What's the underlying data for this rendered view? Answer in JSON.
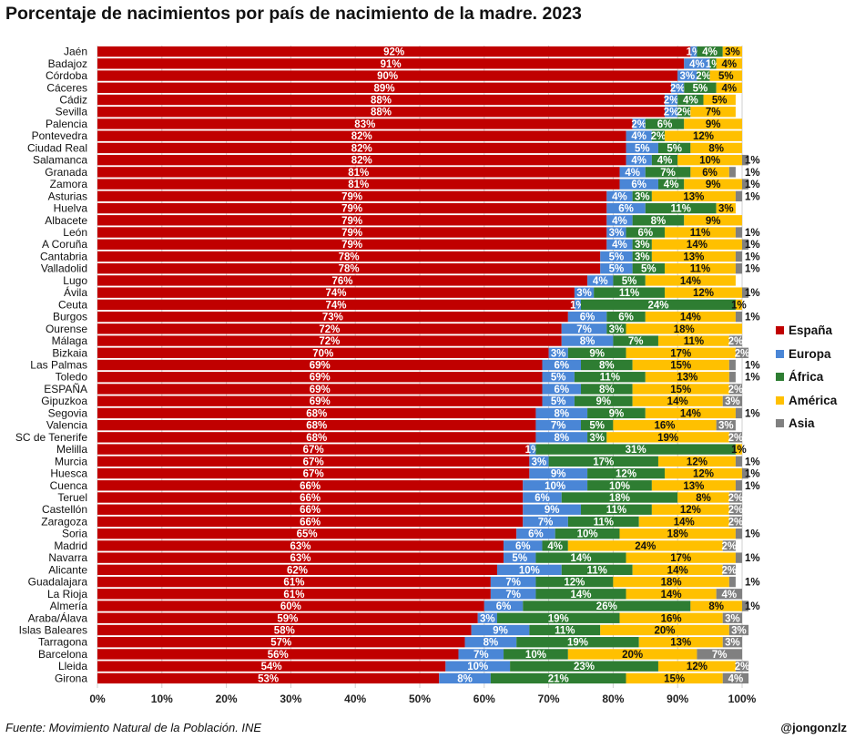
{
  "header": {
    "title": "Porcentaje de nacimientos por país de nacimiento de la madre. 2023"
  },
  "footer": {
    "source": "Fuente: Movimiento Natural de la Población. INE",
    "credit": "@jongonzlz"
  },
  "legend": {
    "placement": "right"
  },
  "chart_data": {
    "type": "bar",
    "orientation": "horizontal",
    "stacked": true,
    "title": "Porcentaje de nacimientos por país de nacimiento de la madre. 2023",
    "xlim": [
      0,
      100
    ],
    "x_ticks": [
      "0%",
      "10%",
      "20%",
      "30%",
      "40%",
      "50%",
      "60%",
      "70%",
      "80%",
      "90%",
      "100%"
    ],
    "grid": true,
    "categories": [
      "Jaén",
      "Badajoz",
      "Córdoba",
      "Cáceres",
      "Cádiz",
      "Sevilla",
      "Palencia",
      "Pontevedra",
      "Ciudad Real",
      "Salamanca",
      "Granada",
      "Zamora",
      "Asturias",
      "Huelva",
      "Albacete",
      "León",
      "A Coruña",
      "Cantabria",
      "Valladolid",
      "Lugo",
      "Ávila",
      "Ceuta",
      "Burgos",
      "Ourense",
      "Málaga",
      "Bizkaia",
      "Las Palmas",
      "Toledo",
      "ESPAÑA",
      "Gipuzkoa",
      "Segovia",
      "Valencia",
      "SC de Tenerife",
      "Melilla",
      "Murcia",
      "Huesca",
      "Cuenca",
      "Teruel",
      "Castellón",
      "Zaragoza",
      "Soria",
      "Madrid",
      "Navarra",
      "Alicante",
      "Guadalajara",
      "La Rioja",
      "Almería",
      "Araba/Álava",
      "Islas Baleares",
      "Tarragona",
      "Barcelona",
      "Lleida",
      "Girona"
    ],
    "series": [
      {
        "name": "España",
        "color": "#c00000",
        "values": [
          92,
          91,
          90,
          89,
          88,
          88,
          83,
          82,
          82,
          82,
          81,
          81,
          79,
          79,
          79,
          79,
          79,
          78,
          78,
          76,
          74,
          74,
          73,
          72,
          72,
          70,
          69,
          69,
          69,
          69,
          68,
          68,
          68,
          67,
          67,
          67,
          66,
          66,
          66,
          66,
          65,
          63,
          63,
          62,
          61,
          61,
          60,
          59,
          58,
          57,
          56,
          54,
          53
        ]
      },
      {
        "name": "Europa",
        "color": "#4a86d6",
        "values": [
          1,
          4,
          3,
          2,
          2,
          2,
          2,
          4,
          5,
          4,
          4,
          6,
          4,
          6,
          4,
          3,
          4,
          5,
          5,
          4,
          3,
          1,
          6,
          7,
          8,
          3,
          6,
          5,
          6,
          5,
          8,
          7,
          8,
          1,
          3,
          9,
          10,
          6,
          9,
          7,
          6,
          6,
          5,
          10,
          7,
          7,
          6,
          3,
          9,
          8,
          7,
          10,
          8
        ]
      },
      {
        "name": "África",
        "color": "#2e7d32",
        "values": [
          4,
          1,
          2,
          5,
          4,
          2,
          6,
          2,
          5,
          4,
          7,
          4,
          3,
          11,
          8,
          6,
          3,
          3,
          5,
          5,
          11,
          24,
          6,
          3,
          7,
          9,
          8,
          11,
          8,
          9,
          9,
          5,
          3,
          31,
          17,
          12,
          10,
          18,
          11,
          11,
          10,
          4,
          14,
          11,
          12,
          14,
          26,
          19,
          11,
          19,
          10,
          23,
          21
        ]
      },
      {
        "name": "América",
        "color": "#ffc000",
        "values": [
          3,
          4,
          5,
          4,
          5,
          7,
          9,
          12,
          8,
          10,
          6,
          9,
          13,
          3,
          9,
          11,
          14,
          13,
          11,
          14,
          12,
          1,
          14,
          18,
          11,
          17,
          15,
          13,
          15,
          14,
          14,
          16,
          19,
          1,
          12,
          12,
          13,
          8,
          12,
          14,
          18,
          24,
          17,
          14,
          18,
          14,
          8,
          16,
          20,
          13,
          20,
          12,
          15
        ]
      },
      {
        "name": "Asia",
        "color": "#808080",
        "values": [
          0,
          0,
          0,
          0,
          0,
          0,
          0,
          0,
          0,
          1,
          1,
          1,
          1,
          0,
          0,
          1,
          1,
          1,
          1,
          0,
          1,
          0,
          1,
          0,
          2,
          2,
          1,
          1,
          2,
          3,
          1,
          3,
          2,
          0,
          1,
          1,
          1,
          2,
          2,
          2,
          1,
          2,
          1,
          2,
          1,
          4,
          1,
          3,
          3,
          3,
          7,
          2,
          4
        ]
      }
    ]
  }
}
